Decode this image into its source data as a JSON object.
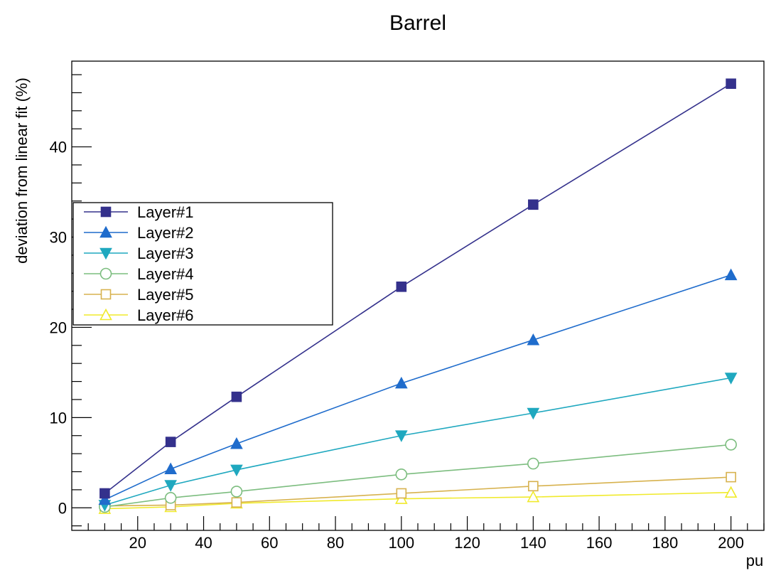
{
  "chart_data": {
    "type": "line",
    "title": "Barrel",
    "xlabel": "pu",
    "ylabel": "deviation from linear fit (%)",
    "xlim": [
      0,
      210
    ],
    "ylim": [
      -2.5,
      49.5
    ],
    "x_ticks": [
      20,
      40,
      60,
      80,
      100,
      120,
      140,
      160,
      180,
      200
    ],
    "y_ticks": [
      0,
      10,
      20,
      30,
      40
    ],
    "grid": false,
    "legend_position": "middle-left",
    "x": [
      10,
      30,
      50,
      100,
      140,
      200
    ],
    "series": [
      {
        "name": "Layer#1",
        "marker": "square-filled",
        "color": "#34318c",
        "values": [
          1.6,
          7.3,
          12.3,
          24.5,
          33.6,
          47.0
        ]
      },
      {
        "name": "Layer#2",
        "marker": "triangle-up-filled",
        "color": "#1f6ccc",
        "values": [
          0.9,
          4.3,
          7.1,
          13.8,
          18.6,
          25.8
        ]
      },
      {
        "name": "Layer#3",
        "marker": "triangle-down-filled",
        "color": "#1fa8bf",
        "values": [
          0.3,
          2.5,
          4.2,
          8.0,
          10.5,
          14.4
        ]
      },
      {
        "name": "Layer#4",
        "marker": "circle-open",
        "color": "#7cbd7f",
        "values": [
          0.1,
          1.1,
          1.8,
          3.7,
          4.9,
          7.0
        ]
      },
      {
        "name": "Layer#5",
        "marker": "square-open",
        "color": "#d7b24e",
        "values": [
          0.2,
          0.3,
          0.6,
          1.6,
          2.4,
          3.4
        ]
      },
      {
        "name": "Layer#6",
        "marker": "triangle-up-open",
        "color": "#f0ea2c",
        "values": [
          -0.1,
          0.1,
          0.5,
          1.0,
          1.2,
          1.7
        ]
      }
    ]
  }
}
